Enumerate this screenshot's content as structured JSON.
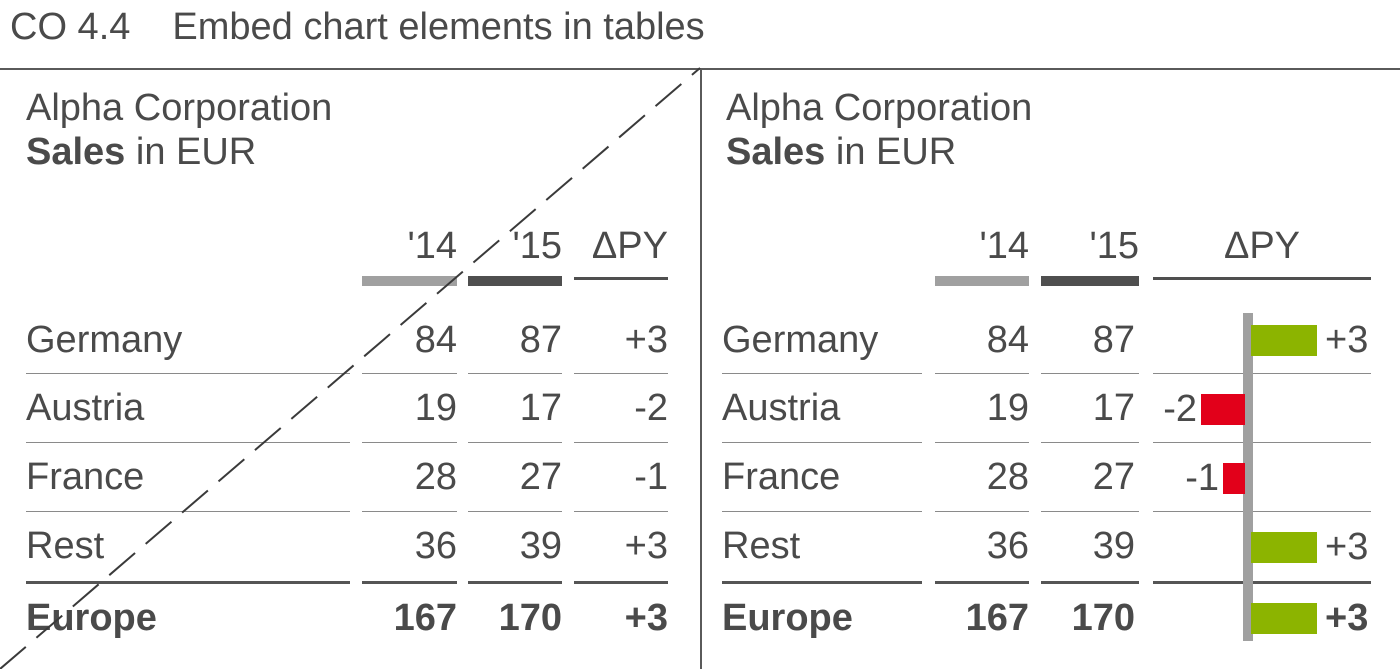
{
  "header": {
    "code": "CO 4.4",
    "title": "Embed chart elements in tables"
  },
  "panels": [
    {
      "company": "Alpha Corporation",
      "measure": "Sales",
      "unit": "in EUR"
    },
    {
      "company": "Alpha Corporation",
      "measure": "Sales",
      "unit": "in EUR"
    }
  ],
  "columns": {
    "py": "'14",
    "ay": "'15",
    "delta": "ΔPY"
  },
  "rows": [
    {
      "label": "Germany",
      "py": "84",
      "ay": "87",
      "delta": "+3",
      "delta_value": 3
    },
    {
      "label": "Austria",
      "py": "19",
      "ay": "17",
      "delta": "-2",
      "delta_value": -2
    },
    {
      "label": "France",
      "py": "28",
      "ay": "27",
      "delta": "-1",
      "delta_value": -1
    },
    {
      "label": "Rest",
      "py": "36",
      "ay": "39",
      "delta": "+3",
      "delta_value": 3
    }
  ],
  "total": {
    "label": "Europe",
    "py": "167",
    "ay": "170",
    "delta": "+3",
    "delta_value": 3
  },
  "colors": {
    "positive": "#8cb400",
    "negative": "#e2001a",
    "previous_year": "#a0a0a0",
    "actual_year": "#4f4f4f",
    "axis": "#a0a0a0"
  },
  "chart_data": {
    "type": "bar",
    "categories": [
      "Germany",
      "Austria",
      "France",
      "Rest",
      "Europe"
    ],
    "values": [
      3,
      -2,
      -1,
      3,
      3
    ],
    "xlabel": "",
    "ylabel": "ΔPY"
  }
}
